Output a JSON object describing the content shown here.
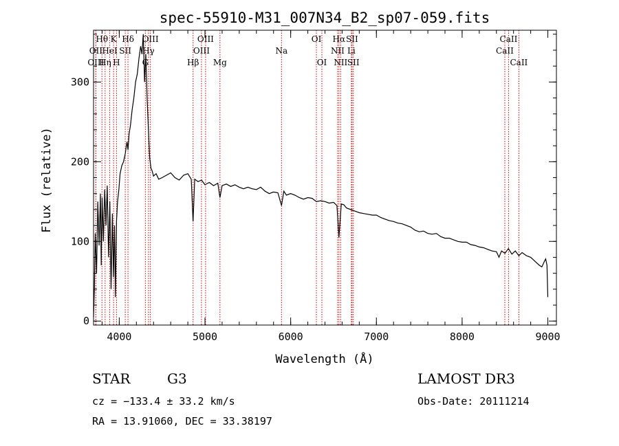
{
  "chart_data": {
    "type": "line",
    "title": "spec-55910-M31_007N34_B2_sp07-059.fits",
    "xlabel": "Wavelength (Å)",
    "ylabel": "Flux (relative)",
    "xlim": [
      3700,
      9100
    ],
    "ylim": [
      -5,
      365
    ],
    "x_ticks": [
      4000,
      5000,
      6000,
      7000,
      8000,
      9000
    ],
    "y_ticks": [
      0,
      100,
      200,
      300
    ],
    "x_minor_step": 200,
    "y_minor_step": 20,
    "spectrum": {
      "name": "flux",
      "x": [
        3700,
        3710,
        3720,
        3735,
        3750,
        3765,
        3780,
        3790,
        3800,
        3815,
        3830,
        3845,
        3860,
        3875,
        3890,
        3905,
        3920,
        3933,
        3945,
        3955,
        3968,
        3980,
        3995,
        4010,
        4030,
        4050,
        4070,
        4090,
        4102,
        4115,
        4130,
        4150,
        4170,
        4190,
        4210,
        4230,
        4250,
        4265,
        4280,
        4295,
        4310,
        4325,
        4340,
        4355,
        4370,
        4385,
        4400,
        4430,
        4460,
        4500,
        4550,
        4600,
        4650,
        4700,
        4750,
        4800,
        4840,
        4861,
        4880,
        4920,
        4960,
        5000,
        5050,
        5100,
        5150,
        5175,
        5200,
        5250,
        5300,
        5350,
        5400,
        5450,
        5500,
        5550,
        5600,
        5650,
        5700,
        5750,
        5800,
        5850,
        5893,
        5920,
        5950,
        6000,
        6050,
        6100,
        6150,
        6200,
        6250,
        6300,
        6350,
        6400,
        6450,
        6500,
        6540,
        6563,
        6590,
        6620,
        6650,
        6700,
        6750,
        6800,
        6850,
        6900,
        6950,
        7000,
        7050,
        7100,
        7150,
        7200,
        7250,
        7300,
        7350,
        7400,
        7450,
        7500,
        7550,
        7600,
        7650,
        7700,
        7750,
        7800,
        7850,
        7900,
        7950,
        8000,
        8050,
        8100,
        8150,
        8200,
        8250,
        8300,
        8350,
        8400,
        8430,
        8460,
        8500,
        8540,
        8580,
        8620,
        8662,
        8700,
        8750,
        8800,
        8850,
        8900,
        8930,
        8960,
        8975,
        8990,
        9000
      ],
      "y": [
        5,
        40,
        110,
        60,
        150,
        95,
        160,
        70,
        155,
        100,
        165,
        120,
        170,
        80,
        150,
        40,
        135,
        55,
        120,
        30,
        125,
        150,
        165,
        185,
        195,
        200,
        210,
        225,
        215,
        235,
        245,
        265,
        280,
        300,
        310,
        330,
        345,
        335,
        360,
        300,
        335,
        280,
        240,
        205,
        192,
        188,
        182,
        185,
        178,
        180,
        183,
        186,
        180,
        177,
        183,
        185,
        178,
        125,
        178,
        175,
        177,
        171,
        174,
        170,
        173,
        155,
        170,
        172,
        169,
        171,
        168,
        166,
        168,
        166,
        165,
        168,
        163,
        160,
        162,
        161,
        145,
        163,
        158,
        160,
        158,
        155,
        153,
        155,
        154,
        150,
        151,
        150,
        148,
        149,
        145,
        105,
        147,
        146,
        142,
        140,
        138,
        136,
        135,
        134,
        133,
        133,
        130,
        128,
        126,
        125,
        123,
        122,
        120,
        118,
        114,
        112,
        113,
        110,
        109,
        110,
        106,
        104,
        104,
        102,
        100,
        99,
        99,
        96,
        95,
        93,
        92,
        90,
        88,
        87,
        80,
        88,
        85,
        91,
        84,
        88,
        82,
        86,
        82,
        80,
        75,
        70,
        68,
        75,
        78,
        70,
        30
      ]
    },
    "spectral_lines": [
      {
        "label": "Hθ",
        "x": 3798,
        "row": 0
      },
      {
        "label": "OII",
        "x": 3727,
        "row": 1
      },
      {
        "label": "OIII",
        "x": 3727,
        "row": 2
      },
      {
        "label": "Hη",
        "x": 3835,
        "row": 2
      },
      {
        "label": "HeI",
        "x": 3889,
        "row": 1
      },
      {
        "label": "K",
        "x": 3934,
        "row": 0
      },
      {
        "label": "H",
        "x": 3968,
        "row": 2
      },
      {
        "label": "SII",
        "x": 4070,
        "row": 1
      },
      {
        "label": "Hδ",
        "x": 4102,
        "row": 0
      },
      {
        "label": "OIII",
        "x": 4363,
        "row": 0
      },
      {
        "label": "Hγ",
        "x": 4341,
        "row": 1
      },
      {
        "label": "G",
        "x": 4305,
        "row": 2
      },
      {
        "label": "Hβ",
        "x": 4861,
        "row": 2
      },
      {
        "label": "OIII",
        "x": 5007,
        "row": 0
      },
      {
        "label": "OIII",
        "x": 4959,
        "row": 1
      },
      {
        "label": "Mg",
        "x": 5175,
        "row": 2
      },
      {
        "label": "Na",
        "x": 5893,
        "row": 1
      },
      {
        "label": "OI",
        "x": 6300,
        "row": 0
      },
      {
        "label": "OI",
        "x": 6364,
        "row": 2
      },
      {
        "label": "Hα",
        "x": 6563,
        "row": 0
      },
      {
        "label": "NII",
        "x": 6548,
        "row": 1
      },
      {
        "label": "NII",
        "x": 6583,
        "row": 2
      },
      {
        "label": "SII",
        "x": 6716,
        "row": 0
      },
      {
        "label": "Li",
        "x": 6708,
        "row": 1
      },
      {
        "label": "SII",
        "x": 6731,
        "row": 2
      },
      {
        "label": "CaII",
        "x": 8542,
        "row": 0
      },
      {
        "label": "CaII",
        "x": 8498,
        "row": 1
      },
      {
        "label": "CaII",
        "x": 8662,
        "row": 2
      }
    ],
    "line_color": "#000000",
    "marker_color": "#cc0000"
  },
  "info": {
    "class": "STAR",
    "subclass": "G3",
    "survey": "LAMOST DR3",
    "cz": "cz = −133.4 ± 33.2 km/s",
    "obs_date": "Obs-Date: 20111214",
    "coords": "RA =  13.91060, DEC =  33.38197"
  }
}
